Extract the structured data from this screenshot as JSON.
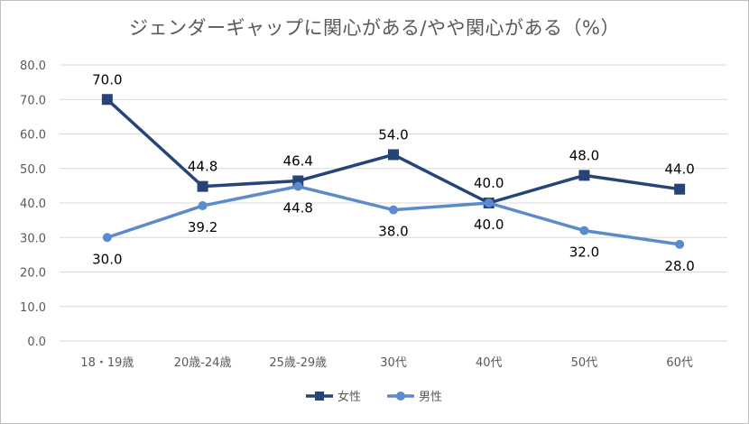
{
  "chart_data": {
    "type": "line",
    "title": "ジェンダーギャップに関心がある/やや関心がある（%）",
    "categories": [
      "18・19歳",
      "20歳-24歳",
      "25歳-29歳",
      "30代",
      "40代",
      "50代",
      "60代"
    ],
    "series": [
      {
        "name": "女性",
        "values": [
          70.0,
          44.8,
          46.4,
          54.0,
          40.0,
          48.0,
          44.0
        ],
        "color": "#264478",
        "marker": "square",
        "label_position": "above"
      },
      {
        "name": "男性",
        "values": [
          30.0,
          39.2,
          44.8,
          38.0,
          40.0,
          32.0,
          28.0
        ],
        "color": "#5B8BCB",
        "marker": "circle",
        "label_position": "below"
      }
    ],
    "ylim": [
      0,
      80
    ],
    "yticks": [
      "0.0",
      "10.0",
      "20.0",
      "30.0",
      "40.0",
      "50.0",
      "60.0",
      "70.0",
      "80.0"
    ],
    "grid": true,
    "legend": "bottom"
  }
}
